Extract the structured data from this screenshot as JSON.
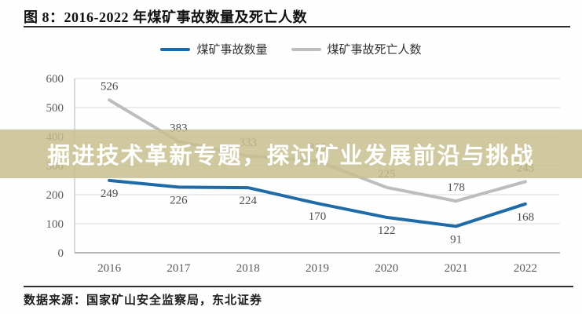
{
  "figure": {
    "title": "图 8：2016-2022 年煤矿事故数量及死亡人数",
    "source": "数据来源：国家矿山安全监察局，东北证券"
  },
  "overlay": {
    "headline": "掘进技术革新专题，探讨矿业发展前沿与挑战",
    "band_color_rgba": "rgba(199,189,139,0.84)"
  },
  "chart_data": {
    "type": "line",
    "categories": [
      "2016",
      "2017",
      "2018",
      "2019",
      "2020",
      "2021",
      "2022"
    ],
    "series": [
      {
        "name": "煤矿事故数量",
        "color": "#1f6ba8",
        "values": [
          249,
          226,
          224,
          170,
          122,
          91,
          168
        ],
        "label_side": "below"
      },
      {
        "name": "煤矿事故死亡人数",
        "color": "#bdbdbd",
        "values": [
          526,
          383,
          333,
          316,
          225,
          178,
          245
        ],
        "label_side": "above"
      }
    ],
    "ylim": [
      0,
      600
    ],
    "ytick_step": 100,
    "yticks": [
      0,
      100,
      200,
      300,
      400,
      500,
      600
    ],
    "grid": true,
    "legend_position": "top",
    "label_color": "#4d4d4d",
    "gridline_color": "#d9d9d9",
    "axis_color": "#9f9f9f"
  }
}
